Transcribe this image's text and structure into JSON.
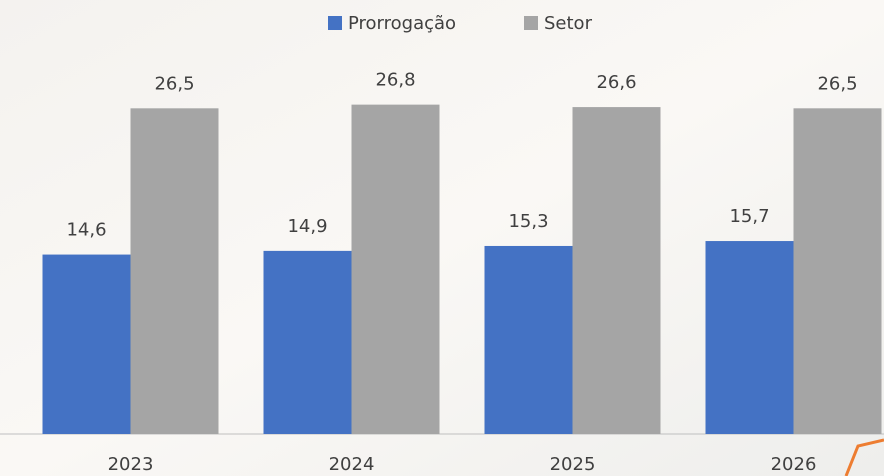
{
  "chart_data": {
    "type": "bar",
    "categories": [
      "2023",
      "2024",
      "2025",
      "2026"
    ],
    "series": [
      {
        "name": "Prorrogação",
        "color": "#4472c4",
        "values": [
          14.6,
          14.9,
          15.3,
          15.7
        ],
        "value_labels": [
          "14,6",
          "14,9",
          "15,3",
          "15,7"
        ]
      },
      {
        "name": "Setor",
        "color": "#a5a5a5",
        "values": [
          26.5,
          26.8,
          26.6,
          26.5
        ],
        "value_labels": [
          "26,5",
          "26,8",
          "26,6",
          "26,5"
        ]
      }
    ]
  }
}
